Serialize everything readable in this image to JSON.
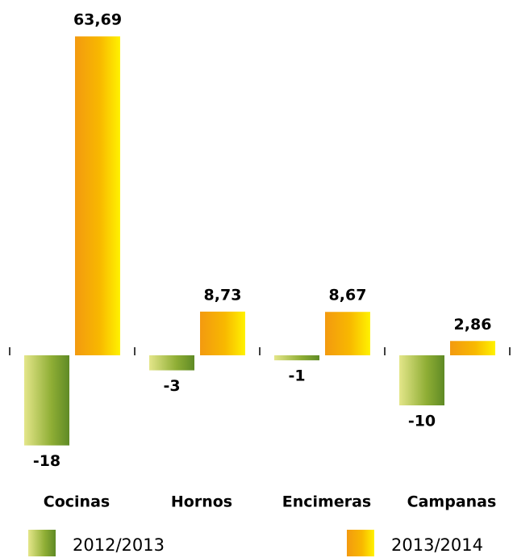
{
  "chart_data": {
    "type": "bar",
    "categories": [
      "Cocinas",
      "Hornos",
      "Encimeras",
      "Campanas"
    ],
    "series": [
      {
        "name": "2012/2013",
        "color": "#8fae35",
        "values": [
          -18,
          -3,
          -1,
          -10
        ]
      },
      {
        "name": "2013/2014",
        "color": "#f8b800",
        "values": [
          63.69,
          8.73,
          8.67,
          2.86
        ],
        "value_labels": [
          "63,69",
          "8,73",
          "8,67",
          "2,86"
        ]
      }
    ],
    "ylim": [
      -20,
      65
    ]
  }
}
